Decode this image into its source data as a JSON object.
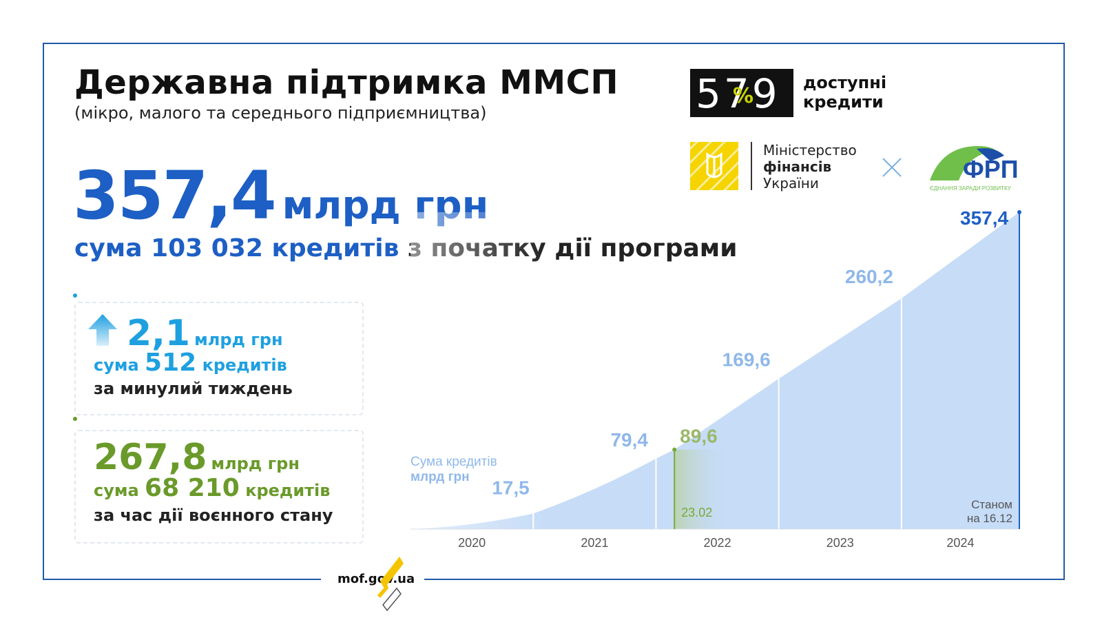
{
  "header": {
    "title": "Державна підтримка ММСП",
    "subtitle": "(мікро, малого та середнього підприємництва)"
  },
  "total": {
    "value": "357,4",
    "unit": "млрд грн",
    "summary_prefix": "сума",
    "summary_count": "103 032",
    "summary_mid": "кредитів",
    "summary_suffix": "з початку дії програми"
  },
  "week_card": {
    "value": "2,1",
    "unit": "млрд грн",
    "prefix": "сума",
    "count": "512",
    "count_unit": "кредитів",
    "note": "за минулий тиждень",
    "color": "#1ea0e0",
    "icon": "up-arrow-icon"
  },
  "war_card": {
    "value": "267,8",
    "unit": "млрд грн",
    "prefix": "сума",
    "count": "68 210",
    "count_unit": "кредитів",
    "note": "за час дії воєнного стану",
    "color": "#6a9a2a"
  },
  "logos": {
    "program_digits": "579",
    "program_text_1": "доступні",
    "program_text_2": "кредити",
    "ministry_line1": "Міністерство",
    "ministry_line2": "фінансів",
    "ministry_line3": "України",
    "frp_name": "ФРП",
    "frp_tagline": "ЄДНАННЯ ЗАРАДИ РОЗВИТКУ",
    "cross_icon": "cross-icon"
  },
  "footer": {
    "site": "mof.gov.ua"
  },
  "chart_data": {
    "type": "area",
    "legend_line1": "Сума кредитів",
    "legend_line2": "млрд грн",
    "categories": [
      "2020",
      "2021",
      "2022",
      "2023",
      "2024"
    ],
    "xlim": [
      2020,
      2024.96
    ],
    "ylim": [
      0,
      357.4
    ],
    "points": [
      {
        "x": 2020.0,
        "y": 0,
        "label": ""
      },
      {
        "x": 2021.0,
        "y": 17.5,
        "label": "17,5"
      },
      {
        "x": 2022.0,
        "y": 79.4,
        "label": "79,4"
      },
      {
        "x": 2022.15,
        "y": 89.6,
        "label": "89,6"
      },
      {
        "x": 2023.0,
        "y": 169.6,
        "label": "169,6"
      },
      {
        "x": 2024.0,
        "y": 260.2,
        "label": "260,2"
      },
      {
        "x": 2024.96,
        "y": 357.4,
        "label": "357,4"
      }
    ],
    "marker": {
      "x": 2022.15,
      "y": 89.6,
      "date_label": "23.02",
      "color": "#7aa83a"
    },
    "end_note_line1": "Станом",
    "end_note_line2": "на 16.12",
    "colors": {
      "area": "#c6dcf7",
      "labels": "#8fb8ea",
      "final": "#1d5fc4",
      "axis": "#555555",
      "marker_label": "#9bb86a"
    }
  }
}
